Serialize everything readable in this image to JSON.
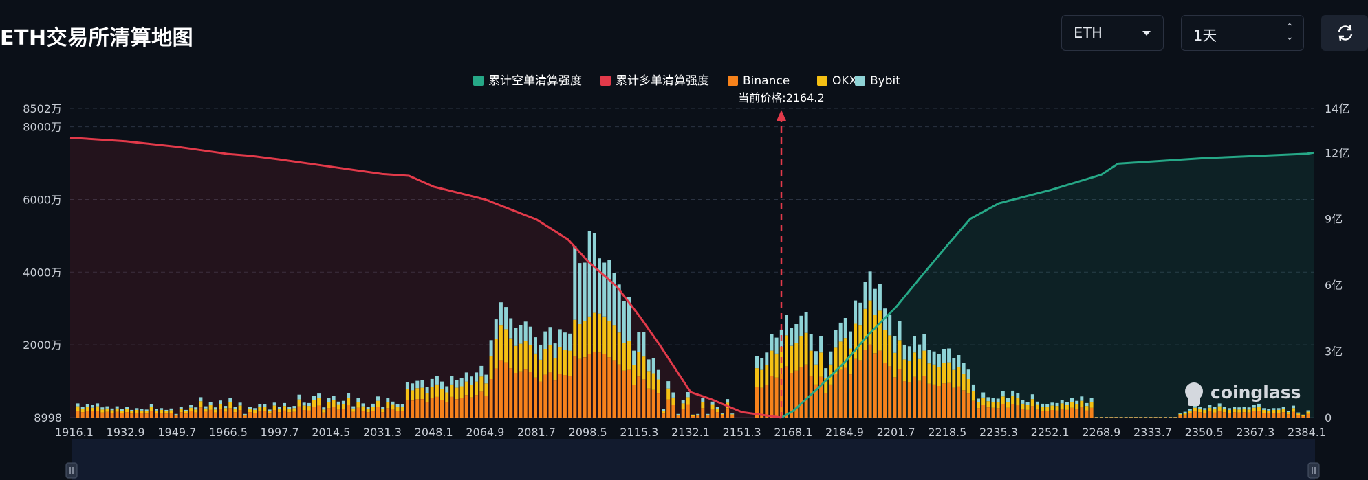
{
  "header": {
    "title": "ETH交易所清算地图",
    "symbol_select": "ETH",
    "range_select": "1天"
  },
  "brand": "coinglass",
  "colors": {
    "binance": "#f7821b",
    "okx": "#f5c014",
    "bybit": "#8fd3d6",
    "short_cum": "#26a887",
    "long_cum": "#e23a4a",
    "background": "#0b1018"
  },
  "chart_data": {
    "type": "bar",
    "legend": [
      {
        "name": "累计空单清算强度",
        "color": "#26a887"
      },
      {
        "name": "累计多单清算强度",
        "color": "#e23a4a"
      },
      {
        "name": "Binance",
        "color": "#f7821b"
      },
      {
        "name": "OKX",
        "color": "#f5c014"
      },
      {
        "name": "Bybit",
        "color": "#8fd3d6"
      }
    ],
    "current_price_label": "当前价格:2164.2",
    "current_price": 2164.2,
    "x_tick_labels": [
      "1916.1",
      "1932.9",
      "1949.7",
      "1966.5",
      "1997.7",
      "2014.5",
      "2031.3",
      "2048.1",
      "2064.9",
      "2081.7",
      "2098.5",
      "2115.3",
      "2132.1",
      "2151.3",
      "2168.1",
      "2184.9",
      "2201.7",
      "2218.5",
      "2235.3",
      "2252.1",
      "2268.9",
      "2333.7",
      "2350.5",
      "2367.3",
      "2384.1"
    ],
    "left_axis": {
      "min": 8998,
      "max": 85020000,
      "tick_values": [
        8998,
        20000000,
        40000000,
        60000000,
        80000000,
        85020000
      ],
      "tick_labels": [
        "8998",
        "2000万",
        "4000万",
        "6000万",
        "8000万",
        "8502万"
      ]
    },
    "right_axis": {
      "min": 0,
      "max": 1400000000,
      "tick_values": [
        0,
        300000000,
        600000000,
        900000000,
        1200000000,
        1400000000
      ],
      "tick_labels": [
        "0",
        "3亿",
        "6亿",
        "9亿",
        "12亿",
        "14亿"
      ]
    },
    "bars": {
      "binance": [
        1.9,
        1.5,
        1.9,
        1.7,
        1.9,
        1.4,
        1.6,
        1.3,
        1.6,
        1.2,
        1.5,
        1.1,
        1.3,
        1.2,
        1.1,
        1.8,
        1.2,
        1.3,
        1.1,
        1.3,
        0.5,
        1.5,
        1.1,
        1.7,
        1.4,
        2.8,
        1.6,
        2.1,
        1.4,
        2.3,
        1.6,
        2.6,
        1.5,
        2.1,
        0.5,
        1.5,
        1.3,
        1.8,
        1.8,
        1.1,
        2.1,
        1.5,
        2.0,
        1.5,
        1.6,
        3.1,
        2.1,
        2.0,
        3.0,
        3.3,
        1.4,
        2.6,
        3.0,
        2.2,
        2.3,
        3.4,
        1.6,
        2.7,
        1.9,
        1.5,
        1.9,
        2.9,
        1.5,
        2.6,
        2.2,
        1.8,
        1.8,
        4.9,
        4.7,
        5.1,
        5.1,
        4.2,
        5.3,
        5.7,
        4.9,
        4.3,
        5.7,
        5.1,
        5.4,
        6.2,
        5.6,
        6.2,
        7.1,
        5.9,
        10.6,
        13.5,
        15.8,
        15.2,
        13.6,
        12.3,
        12.7,
        13.2,
        12.5,
        11.0,
        9.9,
        11.8,
        12.4,
        10.2,
        12.1,
        11.7,
        11.5,
        16.8,
        16.1,
        16.6,
        17.4,
        18.0,
        17.9,
        17.4,
        16.6,
        15.8,
        14.6,
        12.9,
        13.1,
        9.0,
        11.3,
        10.5,
        8.0,
        7.6,
        6.6,
        1.1,
        5.0,
        3.4,
        0.5,
        2.4,
        3.5,
        0.4,
        0.5,
        2.6,
        0.5,
        2.2,
        1.5,
        0.6,
        2.6,
        0.6,
        0.0,
        0.0,
        0.0,
        0.0,
        8.5,
        8.2,
        9.0,
        11.5,
        11.0,
        12.1,
        14.1,
        12.3,
        12.9,
        14.0,
        14.6,
        11.5,
        9.1,
        11.2,
        6.8,
        9.1,
        12.0,
        13.1,
        13.7,
        11.9,
        16.1,
        15.8,
        18.7,
        20.1,
        17.7,
        18.4,
        15.0,
        14.1,
        11.1,
        13.3,
        10.0,
        9.8,
        11.2,
        10.1,
        11.5,
        9.3,
        9.1,
        8.7,
        9.4,
        9.5,
        8.2,
        8.6,
        7.5,
        6.6,
        4.6,
        2.6,
        3.4,
        2.8,
        2.7,
        2.6,
        3.6,
        2.7,
        3.7,
        3.4,
        2.4,
        2.1,
        3.2,
        2.2,
        1.9,
        1.8,
        2.1,
        2.0,
        2.4,
        2.1,
        2.7,
        2.3,
        2.9,
        2.0,
        2.7,
        0.1,
        0.1,
        0.1,
        0.1,
        0.1,
        0.1,
        0.1,
        0.1,
        0.1,
        0.1,
        0.1,
        0.1,
        0.1,
        0.1,
        0.1,
        0.1,
        0.1,
        0.6,
        0.8,
        1.2,
        1.7,
        1.5,
        1.3,
        1.7,
        1.4,
        1.9,
        1.5,
        1.3,
        1.5,
        1.4,
        1.5,
        1.4,
        1.7,
        1.9,
        1.3,
        1.2,
        1.3,
        1.3,
        1.5,
        0.9,
        1.6,
        0.7,
        0.4,
        1.0
      ],
      "okx": [
        1.2,
        0.9,
        1.1,
        1.0,
        1.2,
        0.8,
        0.9,
        0.7,
        0.9,
        0.7,
        0.9,
        0.6,
        0.8,
        0.7,
        0.7,
        1.1,
        0.7,
        0.8,
        0.6,
        0.7,
        0.3,
        0.9,
        0.6,
        1.0,
        0.8,
        1.7,
        0.9,
        1.3,
        0.8,
        1.4,
        1.0,
        1.6,
        0.9,
        1.2,
        0.3,
        0.9,
        0.8,
        1.1,
        1.1,
        0.7,
        1.2,
        0.9,
        1.2,
        0.9,
        1.0,
        1.9,
        1.2,
        1.2,
        1.8,
        2.0,
        0.8,
        1.6,
        1.8,
        1.3,
        1.4,
        2.0,
        0.9,
        1.6,
        1.2,
        0.9,
        1.1,
        1.7,
        0.9,
        1.6,
        1.3,
        1.1,
        1.1,
        2.9,
        2.8,
        3.0,
        3.1,
        2.5,
        3.2,
        3.4,
        3.0,
        2.6,
        3.4,
        3.1,
        3.2,
        3.7,
        3.4,
        3.7,
        4.2,
        3.5,
        6.4,
        8.1,
        9.5,
        9.1,
        8.2,
        7.4,
        7.6,
        7.9,
        7.5,
        6.6,
        6.0,
        7.1,
        7.5,
        6.1,
        7.3,
        7.0,
        6.9,
        10.1,
        9.6,
        10.0,
        10.4,
        10.8,
        10.7,
        10.4,
        9.9,
        9.5,
        8.8,
        7.7,
        7.9,
        5.4,
        6.8,
        6.3,
        4.8,
        4.6,
        3.9,
        0.7,
        3.0,
        2.1,
        0.3,
        1.5,
        2.1,
        0.2,
        0.3,
        1.6,
        0.3,
        1.3,
        0.9,
        0.4,
        1.5,
        0.3,
        0.0,
        0.0,
        0.0,
        0.0,
        5.1,
        4.9,
        5.4,
        6.9,
        6.6,
        7.3,
        8.5,
        7.4,
        7.7,
        8.4,
        8.7,
        6.9,
        5.5,
        6.7,
        4.1,
        5.5,
        7.2,
        7.8,
        8.2,
        7.1,
        9.7,
        9.5,
        11.2,
        12.1,
        10.6,
        11.0,
        9.0,
        8.5,
        6.7,
        8.0,
        6.0,
        5.9,
        6.7,
        6.0,
        6.9,
        5.6,
        5.5,
        5.2,
        5.7,
        5.7,
        4.9,
        5.2,
        4.5,
        4.0,
        2.7,
        1.6,
        2.1,
        1.7,
        1.6,
        1.6,
        2.2,
        1.6,
        2.2,
        2.0,
        1.4,
        1.3,
        1.9,
        1.3,
        1.1,
        1.1,
        1.2,
        1.2,
        1.5,
        1.3,
        1.6,
        1.4,
        1.7,
        1.2,
        1.6,
        0.05,
        0.05,
        0.05,
        0.05,
        0.05,
        0.05,
        0.05,
        0.05,
        0.05,
        0.05,
        0.05,
        0.05,
        0.05,
        0.05,
        0.05,
        0.05,
        0.05,
        0.4,
        0.5,
        0.7,
        1.0,
        0.9,
        0.8,
        1.0,
        0.9,
        1.2,
        0.9,
        0.8,
        0.9,
        0.8,
        0.9,
        0.8,
        1.0,
        1.1,
        0.8,
        0.7,
        0.8,
        0.8,
        0.9,
        0.6,
        1.0,
        0.4,
        0.2,
        0.6
      ],
      "bybit": [
        0.8,
        0.6,
        0.7,
        0.7,
        0.8,
        0.6,
        0.6,
        0.5,
        0.6,
        0.4,
        0.6,
        0.4,
        0.5,
        0.5,
        0.4,
        0.7,
        0.5,
        0.5,
        0.4,
        0.5,
        0.2,
        0.6,
        0.4,
        0.7,
        0.6,
        1.1,
        0.6,
        0.9,
        0.6,
        1.0,
        0.6,
        1.1,
        0.6,
        0.8,
        0.2,
        0.6,
        0.5,
        0.7,
        0.7,
        0.4,
        0.8,
        0.6,
        0.8,
        0.6,
        0.6,
        1.3,
        0.8,
        0.8,
        1.2,
        1.3,
        0.6,
        1.1,
        1.2,
        0.9,
        0.9,
        1.4,
        0.6,
        1.1,
        0.8,
        0.6,
        0.8,
        1.2,
        0.6,
        1.1,
        0.9,
        0.7,
        0.7,
        2.0,
        1.9,
        2.0,
        2.1,
        1.7,
        2.1,
        2.3,
        2.0,
        1.7,
        2.3,
        2.1,
        2.2,
        2.5,
        2.3,
        2.5,
        2.9,
        2.4,
        4.3,
        5.4,
        6.4,
        6.1,
        5.5,
        5.0,
        5.1,
        5.3,
        5.0,
        4.5,
        4.0,
        4.8,
        5.0,
        4.1,
        4.9,
        4.7,
        4.7,
        20.3,
        16.8,
        16.0,
        23.5,
        21.9,
        15.2,
        14.8,
        16.8,
        14.5,
        13.2,
        11.5,
        12.1,
        4.0,
        5.5,
        6.7,
        3.2,
        4.1,
        2.6,
        0.5,
        2.0,
        1.4,
        0.2,
        1.0,
        1.4,
        0.2,
        0.2,
        1.1,
        0.2,
        0.9,
        0.6,
        0.2,
        1.0,
        0.2,
        0.0,
        0.0,
        0.0,
        0.0,
        3.4,
        3.2,
        3.5,
        4.6,
        4.4,
        4.8,
        5.6,
        4.9,
        5.1,
        5.6,
        5.8,
        4.6,
        3.7,
        4.5,
        2.7,
        3.6,
        4.8,
        5.2,
        5.5,
        4.7,
        6.4,
        6.3,
        7.5,
        8.0,
        7.1,
        7.4,
        6.0,
        5.7,
        4.5,
        5.3,
        4.0,
        3.9,
        4.5,
        4.0,
        4.6,
        3.7,
        3.6,
        3.5,
        3.8,
        3.8,
        3.3,
        3.4,
        3.0,
        2.6,
        1.8,
        1.0,
        1.4,
        1.1,
        1.1,
        1.0,
        1.4,
        1.1,
        1.5,
        1.4,
        1.0,
        0.8,
        1.3,
        0.9,
        0.8,
        0.7,
        0.8,
        0.8,
        1.0,
        0.8,
        1.1,
        0.9,
        1.2,
        0.8,
        1.1,
        0.05,
        0.05,
        0.05,
        0.05,
        0.05,
        0.05,
        0.05,
        0.05,
        0.05,
        0.05,
        0.05,
        0.05,
        0.05,
        0.05,
        0.05,
        0.05,
        0.05,
        0.2,
        0.3,
        0.5,
        0.7,
        0.6,
        0.5,
        0.7,
        0.6,
        0.8,
        0.6,
        0.5,
        0.6,
        0.6,
        0.6,
        0.6,
        0.7,
        0.8,
        0.5,
        0.5,
        0.5,
        0.5,
        0.6,
        0.4,
        0.7,
        0.3,
        0.2,
        0.4
      ]
    },
    "bar_units": "百万",
    "long_cumulative": [
      [
        1916.1,
        77000000
      ],
      [
        1932.9,
        76000000
      ],
      [
        1949.7,
        74500000
      ],
      [
        1966.5,
        72500000
      ],
      [
        1980.0,
        72000000
      ],
      [
        1997.7,
        71000000
      ],
      [
        2014.5,
        69000000
      ],
      [
        2031.3,
        67000000
      ],
      [
        2040.0,
        66500000
      ],
      [
        2048.1,
        63500000
      ],
      [
        2064.9,
        60000000
      ],
      [
        2081.7,
        54500000
      ],
      [
        2092.0,
        49000000
      ],
      [
        2098.5,
        43000000
      ],
      [
        2108.0,
        36000000
      ],
      [
        2115.3,
        28000000
      ],
      [
        2122.0,
        20000000
      ],
      [
        2132.1,
        7000000
      ],
      [
        2140.0,
        5000000
      ],
      [
        2151.3,
        1500000
      ],
      [
        2164.2,
        8998
      ]
    ],
    "short_cumulative": [
      [
        2164.2,
        0
      ],
      [
        2168.1,
        30000000
      ],
      [
        2176.0,
        130000000
      ],
      [
        2184.9,
        250000000
      ],
      [
        2193.0,
        380000000
      ],
      [
        2201.7,
        500000000
      ],
      [
        2210.0,
        640000000
      ],
      [
        2218.5,
        780000000
      ],
      [
        2226.0,
        900000000
      ],
      [
        2235.3,
        970000000
      ],
      [
        2252.1,
        1030000000
      ],
      [
        2268.9,
        1100000000
      ],
      [
        2290.0,
        1150000000
      ],
      [
        2333.7,
        1160000000
      ],
      [
        2350.5,
        1175000000
      ],
      [
        2367.3,
        1185000000
      ],
      [
        2384.1,
        1195000000
      ],
      [
        2392.0,
        1200000000
      ]
    ]
  }
}
